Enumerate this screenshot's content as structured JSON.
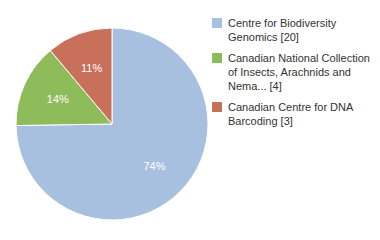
{
  "chart_data": {
    "type": "pie",
    "categories": [
      "Centre for Biodiversity\nGenomics [20]",
      "Canadian National Collection\nof Insects, Arachnids and\nNema... [4]",
      "Canadian Centre for DNA\nBarcoding [3]"
    ],
    "values": [
      74,
      14,
      11
    ],
    "value_labels": [
      "74%",
      "14%",
      "11%"
    ],
    "data_labels": true,
    "colors": [
      "#a8c0df",
      "#8fbc5a",
      "#c9705a"
    ],
    "legend": "upper right"
  }
}
